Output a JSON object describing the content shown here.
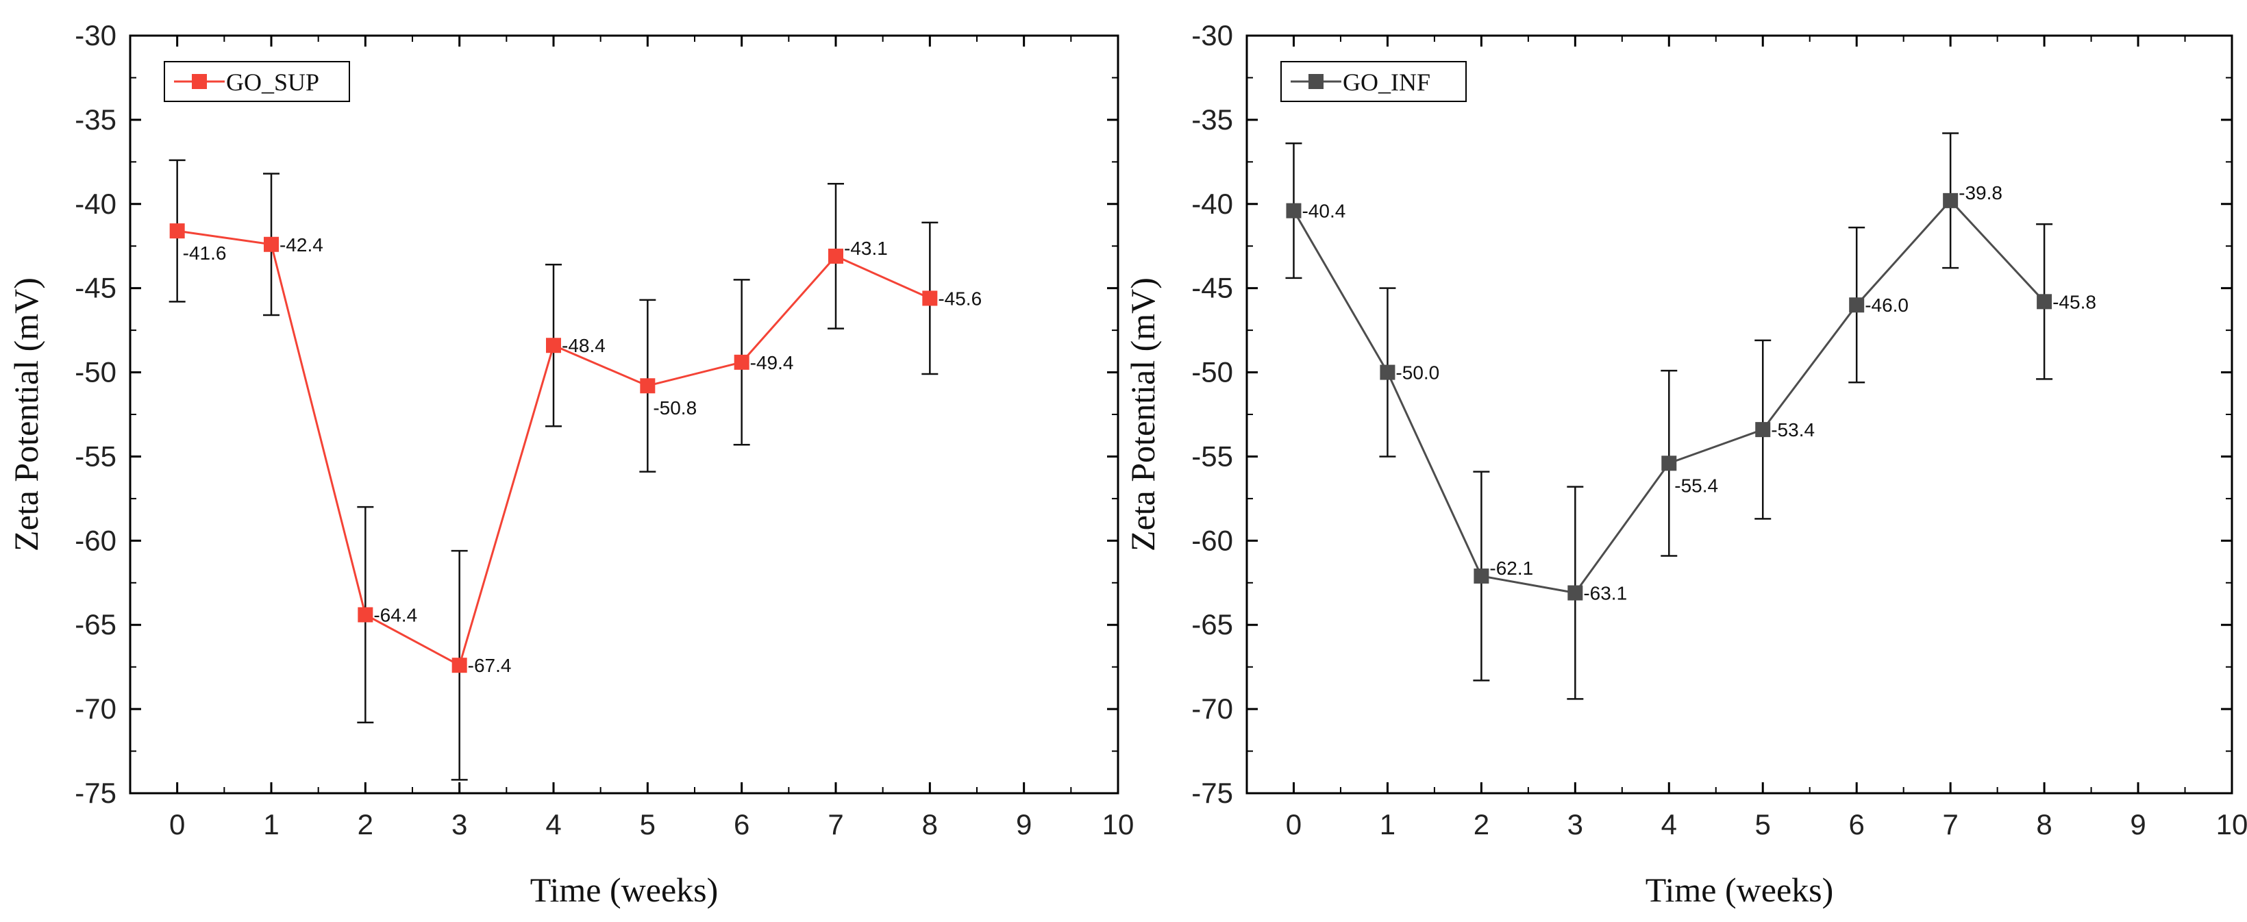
{
  "chart_data": [
    {
      "type": "line",
      "x": [
        0,
        1,
        2,
        3,
        4,
        5,
        6,
        7,
        8
      ],
      "series": [
        {
          "name": "GO_SUP",
          "values": [
            -41.6,
            -42.4,
            -64.4,
            -67.4,
            -48.4,
            -50.8,
            -49.4,
            -43.1,
            -45.6
          ],
          "errors": [
            4.2,
            4.2,
            6.4,
            6.8,
            4.8,
            5.1,
            4.9,
            4.3,
            4.5
          ],
          "data_labels": [
            "-41.6",
            "-42.4",
            "-64.4",
            "-67.4",
            "-48.4",
            "-50.8",
            "-49.4",
            "-43.1",
            "-45.6"
          ],
          "color": "#f44336"
        }
      ],
      "xlabel": "Time (weeks)",
      "ylabel": "Zeta Potential (mV)",
      "xlim": [
        -0.5,
        10
      ],
      "ylim": [
        -75,
        -30
      ],
      "xticks": [
        "0",
        "1",
        "2",
        "3",
        "4",
        "5",
        "6",
        "7",
        "8",
        "9",
        "10"
      ],
      "yticks": [
        "-30",
        "-35",
        "-40",
        "-45",
        "-50",
        "-55",
        "-60",
        "-65",
        "-70",
        "-75"
      ],
      "legend": "top-left",
      "grid": false
    },
    {
      "type": "line",
      "x": [
        0,
        1,
        2,
        3,
        4,
        5,
        6,
        7,
        8
      ],
      "series": [
        {
          "name": "GO_INF",
          "values": [
            -40.4,
            -50.0,
            -62.1,
            -63.1,
            -55.4,
            -53.4,
            -46.0,
            -39.8,
            -45.8
          ],
          "errors": [
            4.0,
            5.0,
            6.2,
            6.3,
            5.5,
            5.3,
            4.6,
            4.0,
            4.6
          ],
          "data_labels": [
            "-40.4",
            "-50.0",
            "-62.1",
            "-63.1",
            "-55.4",
            "-53.4",
            "-46.0",
            "-39.8",
            "-45.8"
          ],
          "color": "#4d4d4d"
        }
      ],
      "xlabel": "Time (weeks)",
      "ylabel": "Zeta Potential (mV)",
      "xlim": [
        -0.5,
        10
      ],
      "ylim": [
        -75,
        -30
      ],
      "xticks": [
        "0",
        "1",
        "2",
        "3",
        "4",
        "5",
        "6",
        "7",
        "8",
        "9",
        "10"
      ],
      "yticks": [
        "-30",
        "-35",
        "-40",
        "-45",
        "-50",
        "-55",
        "-60",
        "-65",
        "-70",
        "-75"
      ],
      "legend": "top-left",
      "grid": false
    }
  ]
}
